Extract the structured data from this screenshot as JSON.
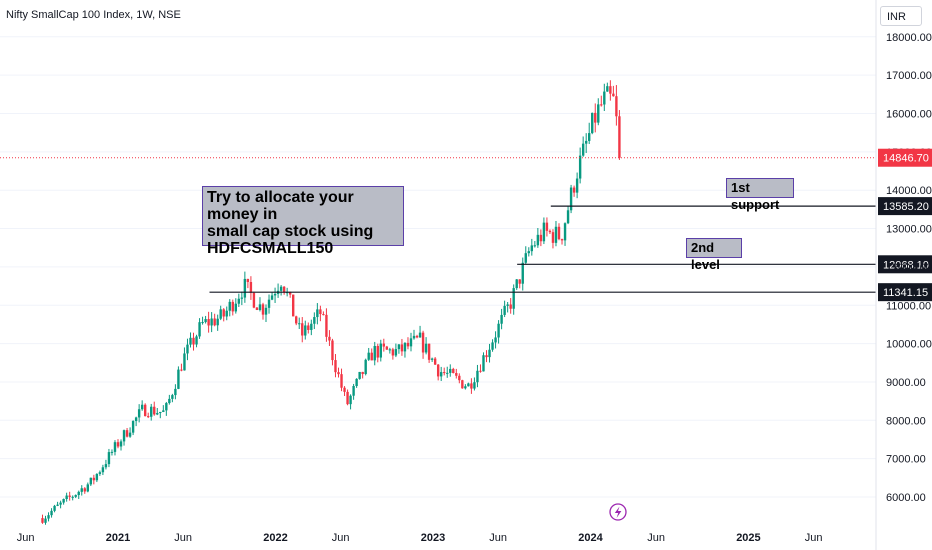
{
  "header": {
    "title": "Nifty SmallCap 100 Index, 1W, NSE",
    "currency": "INR"
  },
  "annotations": {
    "main_note": [
      "Try to allocate your money in",
      "small cap stock using",
      "HDFCSMALL150"
    ],
    "support1": "1st support",
    "support2": "2nd level"
  },
  "colors": {
    "up": "#089981",
    "down": "#f23645",
    "level_line": "#131722",
    "annotation_border": "#5b3fa8",
    "annotation_bg": "#b9bcc6"
  },
  "icons": {
    "event_marker": "lightning-bolt-icon"
  },
  "chart_data": {
    "type": "candlestick",
    "title": "Nifty SmallCap 100 Index, 1W, NSE",
    "ylim": [
      5500,
      18500
    ],
    "y_ticks": [
      "18000.00",
      "17000.00",
      "16000.00",
      "15000.00",
      "14000.00",
      "13000.00",
      "12000.00",
      "11000.00",
      "10000.00",
      "9000.00",
      "8000.00",
      "7000.00",
      "6000.00"
    ],
    "x_ticks": [
      {
        "label": "Jun",
        "date": "2020-06-01",
        "bold": false
      },
      {
        "label": "2021",
        "date": "2021-01-01",
        "bold": true
      },
      {
        "label": "Jun",
        "date": "2021-06-01",
        "bold": false
      },
      {
        "label": "2022",
        "date": "2022-01-01",
        "bold": true
      },
      {
        "label": "Jun",
        "date": "2022-06-01",
        "bold": false
      },
      {
        "label": "2023",
        "date": "2023-01-01",
        "bold": true
      },
      {
        "label": "Jun",
        "date": "2023-06-01",
        "bold": false
      },
      {
        "label": "2024",
        "date": "2024-01-01",
        "bold": true
      },
      {
        "label": "Jun",
        "date": "2024-06-01",
        "bold": false
      },
      {
        "label": "2025",
        "date": "2025-01-01",
        "bold": true
      },
      {
        "label": "Jun",
        "date": "2025-06-01",
        "bold": false
      }
    ],
    "last_price": "14846.70",
    "levels": [
      {
        "value": "13585.20",
        "from": "2023-10-01"
      },
      {
        "value": "12068.10",
        "from": "2023-07-15"
      },
      {
        "value": "11341.15",
        "from": "2021-08-01"
      }
    ],
    "close_anchors": [
      {
        "date": "2020-07-10",
        "close": 5450
      },
      {
        "date": "2020-09-01",
        "close": 5900
      },
      {
        "date": "2020-11-01",
        "close": 6400
      },
      {
        "date": "2021-01-01",
        "close": 7400
      },
      {
        "date": "2021-03-01",
        "close": 8300
      },
      {
        "date": "2021-04-20",
        "close": 8200
      },
      {
        "date": "2021-06-01",
        "close": 9600
      },
      {
        "date": "2021-07-15",
        "close": 10500
      },
      {
        "date": "2021-09-01",
        "close": 10700
      },
      {
        "date": "2021-10-20",
        "close": 11500
      },
      {
        "date": "2021-12-01",
        "close": 10900
      },
      {
        "date": "2022-01-15",
        "close": 11700
      },
      {
        "date": "2022-03-01",
        "close": 10200
      },
      {
        "date": "2022-04-15",
        "close": 10800
      },
      {
        "date": "2022-06-15",
        "close": 8400
      },
      {
        "date": "2022-08-15",
        "close": 9800
      },
      {
        "date": "2022-10-15",
        "close": 9800
      },
      {
        "date": "2022-12-01",
        "close": 10100
      },
      {
        "date": "2023-01-15",
        "close": 9300
      },
      {
        "date": "2023-03-25",
        "close": 8900
      },
      {
        "date": "2023-05-01",
        "close": 9700
      },
      {
        "date": "2023-07-01",
        "close": 11100
      },
      {
        "date": "2023-08-15",
        "close": 12500
      },
      {
        "date": "2023-09-15",
        "close": 12900
      },
      {
        "date": "2023-10-25",
        "close": 12800
      },
      {
        "date": "2023-12-01",
        "close": 14500
      },
      {
        "date": "2024-01-15",
        "close": 16000
      },
      {
        "date": "2024-02-05",
        "close": 16400
      },
      {
        "date": "2024-02-25",
        "close": 16300
      },
      {
        "date": "2024-03-10",
        "close": 14846.7
      }
    ]
  }
}
